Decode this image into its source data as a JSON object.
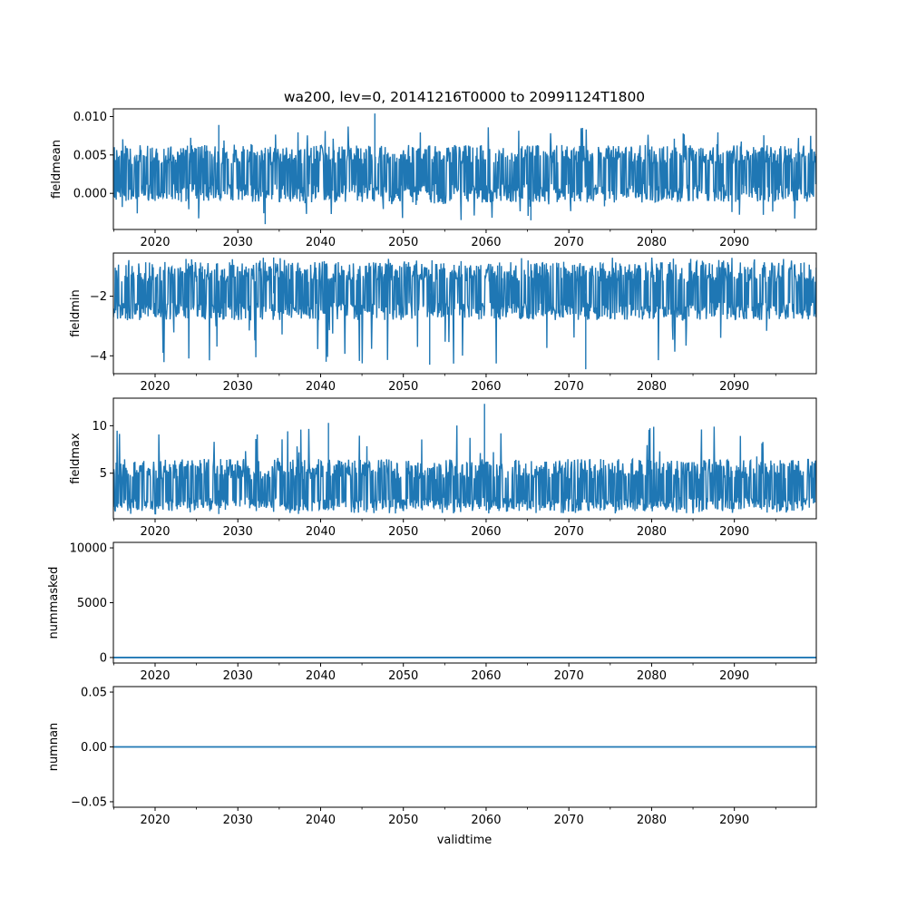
{
  "figure": {
    "title": "wa200, lev=0, 20141216T0000 to 20991124T1800",
    "xlabel": "validtime",
    "line_color": "#1f77b4"
  },
  "chart_data": [
    {
      "type": "line",
      "ylabel": "fieldmean",
      "xlim": [
        2014.96,
        2099.9
      ],
      "ylim": [
        -0.0047,
        0.011
      ],
      "xticks": [
        "2020",
        "2030",
        "2040",
        "2050",
        "2060",
        "2070",
        "2080",
        "2090"
      ],
      "yticks": [
        {
          "value": 0.0,
          "label": "0.000"
        },
        {
          "value": 0.005,
          "label": "0.005"
        },
        {
          "value": 0.01,
          "label": "0.010"
        }
      ],
      "band": {
        "center": 0.0025,
        "upper": 0.0063,
        "lower": -0.0012,
        "peaks_high": [
          0.0089,
          0.0104
        ],
        "peaks_low": [
          -0.0035,
          -0.004
        ]
      }
    },
    {
      "type": "line",
      "ylabel": "fieldmin",
      "xlim": [
        2014.96,
        2099.9
      ],
      "ylim": [
        -4.6,
        -0.55
      ],
      "xticks": [
        "2020",
        "2030",
        "2040",
        "2050",
        "2060",
        "2070",
        "2080",
        "2090"
      ],
      "yticks": [
        {
          "value": -2,
          "label": "−2"
        },
        {
          "value": -4,
          "label": "−4"
        }
      ],
      "band": {
        "center": -1.9,
        "upper": -0.85,
        "lower": -2.8,
        "peaks_high": [
          -0.7
        ],
        "peaks_low": [
          -4.3,
          -4.45
        ]
      }
    },
    {
      "type": "line",
      "ylabel": "fieldmax",
      "xlim": [
        2014.96,
        2099.9
      ],
      "ylim": [
        0.2,
        12.9
      ],
      "xticks": [
        "2020",
        "2030",
        "2040",
        "2050",
        "2060",
        "2070",
        "2080",
        "2090"
      ],
      "yticks": [
        {
          "value": 5,
          "label": "5"
        },
        {
          "value": 10,
          "label": "10"
        }
      ],
      "band": {
        "center": 3.2,
        "upper": 6.5,
        "lower": 1.0,
        "peaks_high": [
          10.3,
          12.3
        ],
        "peaks_low": [
          0.7
        ]
      }
    },
    {
      "type": "line",
      "ylabel": "nummasked",
      "xlim": [
        2014.96,
        2099.9
      ],
      "ylim": [
        -500,
        10500
      ],
      "xticks": [
        "2020",
        "2030",
        "2040",
        "2050",
        "2060",
        "2070",
        "2080",
        "2090"
      ],
      "yticks": [
        {
          "value": 0,
          "label": "0"
        },
        {
          "value": 5000,
          "label": "5000"
        },
        {
          "value": 10000,
          "label": "10000"
        }
      ],
      "constant": 0
    },
    {
      "type": "line",
      "ylabel": "numnan",
      "xlim": [
        2014.96,
        2099.9
      ],
      "ylim": [
        -0.055,
        0.055
      ],
      "xticks": [
        "2020",
        "2030",
        "2040",
        "2050",
        "2060",
        "2070",
        "2080",
        "2090"
      ],
      "yticks": [
        {
          "value": 0.05,
          "label": "0.05"
        },
        {
          "value": 0.0,
          "label": "0.00"
        },
        {
          "value": -0.05,
          "label": "−0.05"
        }
      ],
      "constant": 0
    }
  ]
}
